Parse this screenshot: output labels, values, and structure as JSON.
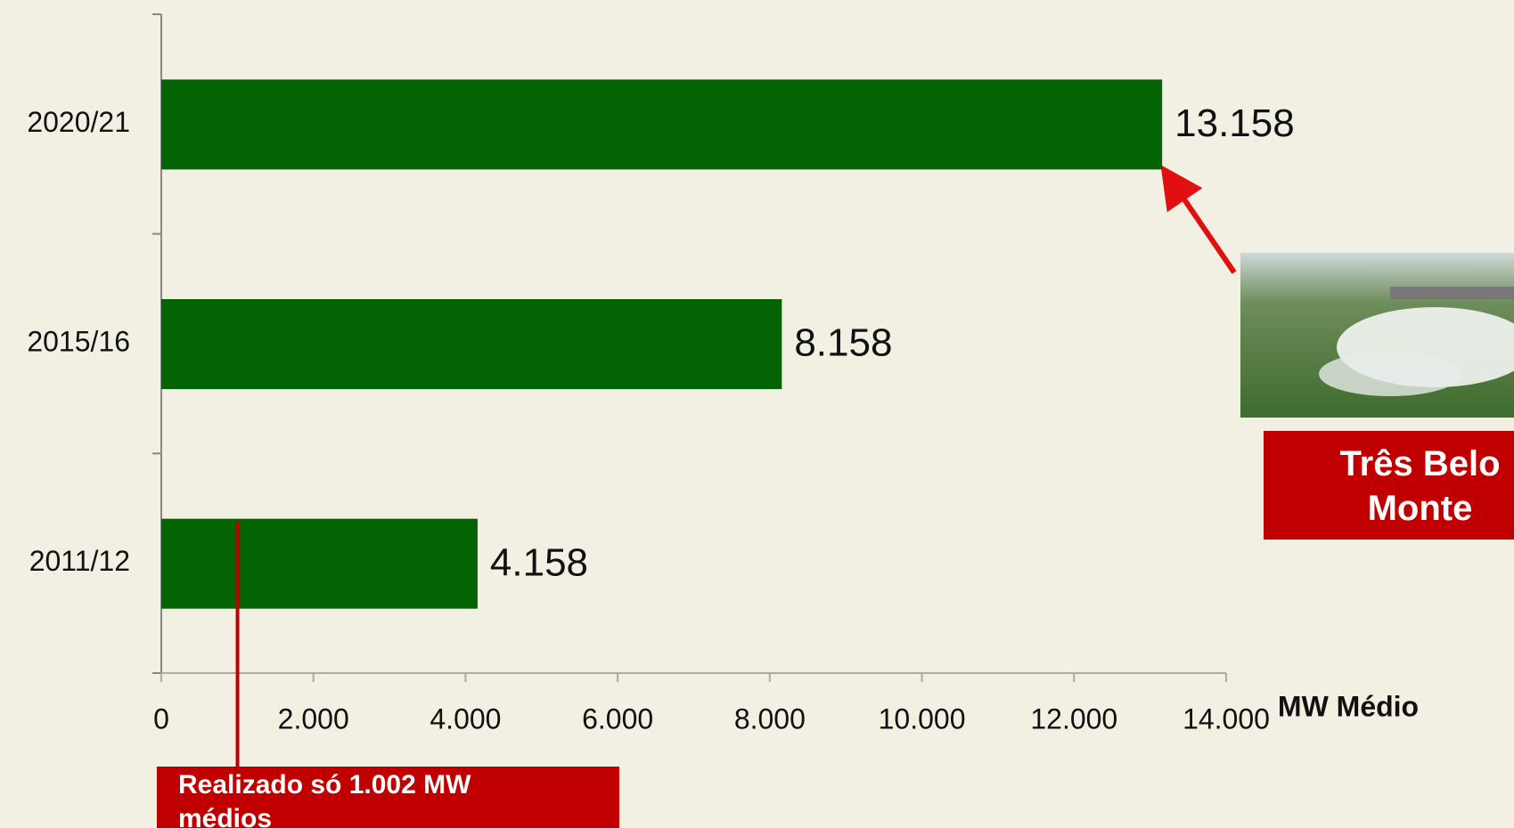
{
  "chart_data": {
    "type": "bar",
    "orientation": "horizontal",
    "categories": [
      "2020/21",
      "2015/16",
      "2011/12"
    ],
    "values": [
      13158,
      8158,
      4158
    ],
    "value_labels": [
      "13.158",
      "8.158",
      "4.158"
    ],
    "color": "#046404",
    "xlim": [
      0,
      14000
    ],
    "xticks": [
      0,
      {
        "value": 2000,
        "label": "2.000"
      },
      {
        "value": 4000,
        "label": "4.000"
      },
      {
        "value": 6000,
        "label": "6.000"
      },
      {
        "value": 8000,
        "label": "8.000"
      },
      {
        "value": 10000,
        "label": "10.000"
      },
      {
        "value": 12000,
        "label": "12.000"
      },
      {
        "value": 14000,
        "label": "14.000"
      }
    ],
    "x_label": "MW Médio",
    "callout": "Três Belo Monte",
    "marker": {
      "text": "Realizado só 1.002 MW médios",
      "value": 1002,
      "color": "#c00000"
    }
  }
}
